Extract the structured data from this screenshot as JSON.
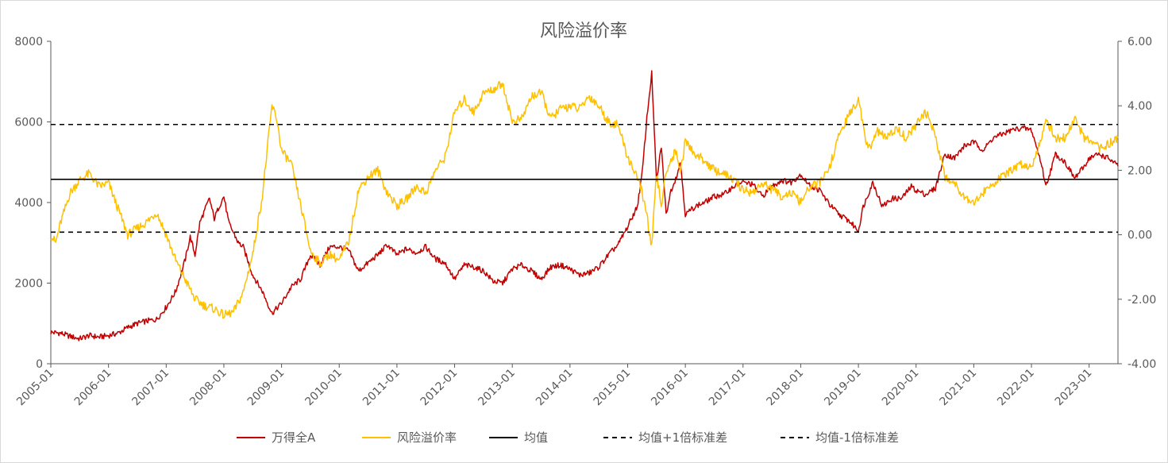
{
  "chart_data": {
    "type": "line",
    "title": "风险溢价率",
    "x_ticks": [
      "2005-01",
      "2006-01",
      "2007-01",
      "2008-01",
      "2009-01",
      "2010-01",
      "2011-01",
      "2012-01",
      "2013-01",
      "2014-01",
      "2015-01",
      "2016-01",
      "2017-01",
      "2018-01",
      "2019-01",
      "2020-01",
      "2021-01",
      "2022-01",
      "2023-01"
    ],
    "x_range": [
      "2005-01",
      "2023-07"
    ],
    "y_left": {
      "min": 0,
      "max": 8000,
      "ticks": [
        "0",
        "2000",
        "4000",
        "6000",
        "8000"
      ]
    },
    "y_right": {
      "min": -4,
      "max": 6,
      "ticks": [
        "-4.00",
        "-2.00",
        "0.00",
        "2.00",
        "4.00",
        "6.00"
      ]
    },
    "grid": false,
    "legend_position": "bottom",
    "series": [
      {
        "name": "万得全A",
        "axis": "left",
        "color": "#C00000",
        "points": [
          [
            "2005-01",
            780
          ],
          [
            "2005-03",
            760
          ],
          [
            "2005-05",
            680
          ],
          [
            "2005-07",
            620
          ],
          [
            "2005-09",
            700
          ],
          [
            "2005-11",
            660
          ],
          [
            "2006-01",
            700
          ],
          [
            "2006-03",
            760
          ],
          [
            "2006-05",
            900
          ],
          [
            "2006-07",
            1000
          ],
          [
            "2006-09",
            1060
          ],
          [
            "2006-11",
            1100
          ],
          [
            "2007-01",
            1400
          ],
          [
            "2007-03",
            1800
          ],
          [
            "2007-05",
            2600
          ],
          [
            "2007-06",
            3150
          ],
          [
            "2007-07",
            2700
          ],
          [
            "2007-08",
            3500
          ],
          [
            "2007-10",
            4100
          ],
          [
            "2007-11",
            3600
          ],
          [
            "2007-12",
            3900
          ],
          [
            "2008-01",
            4150
          ],
          [
            "2008-02",
            3500
          ],
          [
            "2008-04",
            3000
          ],
          [
            "2008-05",
            2900
          ],
          [
            "2008-07",
            2200
          ],
          [
            "2008-09",
            1800
          ],
          [
            "2008-11",
            1250
          ],
          [
            "2009-01",
            1500
          ],
          [
            "2009-03",
            1900
          ],
          [
            "2009-05",
            2100
          ],
          [
            "2009-07",
            2700
          ],
          [
            "2009-09",
            2450
          ],
          [
            "2009-11",
            2900
          ],
          [
            "2010-01",
            2900
          ],
          [
            "2010-03",
            2800
          ],
          [
            "2010-05",
            2300
          ],
          [
            "2010-07",
            2500
          ],
          [
            "2010-09",
            2700
          ],
          [
            "2010-11",
            2950
          ],
          [
            "2011-01",
            2700
          ],
          [
            "2011-03",
            2850
          ],
          [
            "2011-05",
            2750
          ],
          [
            "2011-07",
            2900
          ],
          [
            "2011-09",
            2600
          ],
          [
            "2011-11",
            2500
          ],
          [
            "2012-01",
            2100
          ],
          [
            "2012-03",
            2450
          ],
          [
            "2012-05",
            2400
          ],
          [
            "2012-07",
            2300
          ],
          [
            "2012-09",
            2050
          ],
          [
            "2012-11",
            2000
          ],
          [
            "2013-01",
            2350
          ],
          [
            "2013-03",
            2450
          ],
          [
            "2013-05",
            2300
          ],
          [
            "2013-07",
            2100
          ],
          [
            "2013-09",
            2400
          ],
          [
            "2013-11",
            2450
          ],
          [
            "2014-01",
            2350
          ],
          [
            "2014-03",
            2200
          ],
          [
            "2014-05",
            2250
          ],
          [
            "2014-07",
            2400
          ],
          [
            "2014-09",
            2700
          ],
          [
            "2014-11",
            2950
          ],
          [
            "2015-01",
            3400
          ],
          [
            "2015-03",
            3900
          ],
          [
            "2015-04",
            4700
          ],
          [
            "2015-05",
            6100
          ],
          [
            "2015-06",
            7200
          ],
          [
            "2015-07",
            4500
          ],
          [
            "2015-08",
            5400
          ],
          [
            "2015-09",
            3700
          ],
          [
            "2015-10",
            4300
          ],
          [
            "2015-11",
            4600
          ],
          [
            "2015-12",
            5000
          ],
          [
            "2016-01",
            3700
          ],
          [
            "2016-03",
            3900
          ],
          [
            "2016-05",
            4000
          ],
          [
            "2016-07",
            4150
          ],
          [
            "2016-09",
            4200
          ],
          [
            "2016-11",
            4400
          ],
          [
            "2017-01",
            4500
          ],
          [
            "2017-03",
            4450
          ],
          [
            "2017-05",
            4150
          ],
          [
            "2017-07",
            4400
          ],
          [
            "2017-09",
            4550
          ],
          [
            "2017-11",
            4500
          ],
          [
            "2018-01",
            4700
          ],
          [
            "2018-03",
            4400
          ],
          [
            "2018-05",
            4300
          ],
          [
            "2018-07",
            3950
          ],
          [
            "2018-09",
            3700
          ],
          [
            "2018-11",
            3550
          ],
          [
            "2019-01",
            3300
          ],
          [
            "2019-02",
            3900
          ],
          [
            "2019-04",
            4500
          ],
          [
            "2019-06",
            3900
          ],
          [
            "2019-08",
            4100
          ],
          [
            "2019-10",
            4100
          ],
          [
            "2019-12",
            4400
          ],
          [
            "2020-01",
            4300
          ],
          [
            "2020-03",
            4200
          ],
          [
            "2020-05",
            4350
          ],
          [
            "2020-07",
            5200
          ],
          [
            "2020-09",
            5100
          ],
          [
            "2020-11",
            5400
          ],
          [
            "2021-01",
            5500
          ],
          [
            "2021-03",
            5300
          ],
          [
            "2021-05",
            5600
          ],
          [
            "2021-07",
            5700
          ],
          [
            "2021-09",
            5800
          ],
          [
            "2021-11",
            5850
          ],
          [
            "2022-01",
            5800
          ],
          [
            "2022-03",
            5000
          ],
          [
            "2022-04",
            4400
          ],
          [
            "2022-06",
            5200
          ],
          [
            "2022-08",
            5000
          ],
          [
            "2022-10",
            4600
          ],
          [
            "2022-12",
            4900
          ],
          [
            "2023-01",
            5100
          ],
          [
            "2023-03",
            5200
          ],
          [
            "2023-05",
            5100
          ],
          [
            "2023-07",
            4900
          ]
        ]
      },
      {
        "name": "风险溢价率",
        "axis": "right",
        "color": "#FFC000",
        "points": [
          [
            "2005-01",
            0.0
          ],
          [
            "2005-02",
            -0.25
          ],
          [
            "2005-03",
            0.35
          ],
          [
            "2005-05",
            1.3
          ],
          [
            "2005-07",
            1.7
          ],
          [
            "2005-09",
            1.9
          ],
          [
            "2005-11",
            1.5
          ],
          [
            "2006-01",
            1.6
          ],
          [
            "2006-03",
            0.8
          ],
          [
            "2006-05",
            0.0
          ],
          [
            "2006-07",
            0.2
          ],
          [
            "2006-09",
            0.4
          ],
          [
            "2006-11",
            0.7
          ],
          [
            "2007-01",
            0.0
          ],
          [
            "2007-03",
            -0.8
          ],
          [
            "2007-05",
            -1.4
          ],
          [
            "2007-07",
            -2.0
          ],
          [
            "2007-09",
            -2.2
          ],
          [
            "2007-11",
            -2.3
          ],
          [
            "2008-01",
            -2.5
          ],
          [
            "2008-03",
            -2.4
          ],
          [
            "2008-05",
            -1.8
          ],
          [
            "2008-07",
            -0.6
          ],
          [
            "2008-09",
            1.2
          ],
          [
            "2008-11",
            4.0
          ],
          [
            "2008-12",
            3.6
          ],
          [
            "2009-01",
            2.6
          ],
          [
            "2009-03",
            2.2
          ],
          [
            "2009-05",
            0.9
          ],
          [
            "2009-07",
            -0.5
          ],
          [
            "2009-09",
            -0.9
          ],
          [
            "2009-11",
            -0.6
          ],
          [
            "2010-01",
            -0.8
          ],
          [
            "2010-03",
            -0.2
          ],
          [
            "2010-05",
            1.4
          ],
          [
            "2010-07",
            1.8
          ],
          [
            "2010-09",
            2.0
          ],
          [
            "2010-11",
            1.3
          ],
          [
            "2011-01",
            0.9
          ],
          [
            "2011-03",
            1.1
          ],
          [
            "2011-05",
            1.5
          ],
          [
            "2011-07",
            1.3
          ],
          [
            "2011-09",
            2.0
          ],
          [
            "2011-11",
            2.4
          ],
          [
            "2012-01",
            3.8
          ],
          [
            "2012-03",
            4.2
          ],
          [
            "2012-05",
            3.8
          ],
          [
            "2012-07",
            4.4
          ],
          [
            "2012-09",
            4.5
          ],
          [
            "2012-11",
            4.7
          ],
          [
            "2013-01",
            3.5
          ],
          [
            "2013-03",
            3.6
          ],
          [
            "2013-05",
            4.3
          ],
          [
            "2013-07",
            4.4
          ],
          [
            "2013-09",
            3.6
          ],
          [
            "2013-11",
            3.9
          ],
          [
            "2014-01",
            4.0
          ],
          [
            "2014-03",
            3.9
          ],
          [
            "2014-05",
            4.3
          ],
          [
            "2014-07",
            4.0
          ],
          [
            "2014-09",
            3.5
          ],
          [
            "2014-11",
            3.4
          ],
          [
            "2015-01",
            2.4
          ],
          [
            "2015-03",
            1.8
          ],
          [
            "2015-04",
            1.3
          ],
          [
            "2015-05",
            0.6
          ],
          [
            "2015-06",
            -0.4
          ],
          [
            "2015-07",
            1.9
          ],
          [
            "2015-08",
            0.9
          ],
          [
            "2015-09",
            2.0
          ],
          [
            "2015-11",
            2.6
          ],
          [
            "2015-12",
            2.0
          ],
          [
            "2016-01",
            2.9
          ],
          [
            "2016-03",
            2.5
          ],
          [
            "2016-05",
            2.3
          ],
          [
            "2016-07",
            2.0
          ],
          [
            "2016-09",
            1.9
          ],
          [
            "2016-11",
            1.7
          ],
          [
            "2017-01",
            1.4
          ],
          [
            "2017-03",
            1.3
          ],
          [
            "2017-05",
            1.6
          ],
          [
            "2017-07",
            1.4
          ],
          [
            "2017-09",
            1.2
          ],
          [
            "2017-11",
            1.3
          ],
          [
            "2018-01",
            1.0
          ],
          [
            "2018-03",
            1.5
          ],
          [
            "2018-05",
            1.6
          ],
          [
            "2018-07",
            2.1
          ],
          [
            "2018-09",
            3.1
          ],
          [
            "2018-11",
            3.7
          ],
          [
            "2019-01",
            4.2
          ],
          [
            "2019-03",
            2.6
          ],
          [
            "2019-05",
            3.2
          ],
          [
            "2019-07",
            3.0
          ],
          [
            "2019-09",
            3.3
          ],
          [
            "2019-11",
            3.0
          ],
          [
            "2020-01",
            3.4
          ],
          [
            "2020-03",
            3.8
          ],
          [
            "2020-05",
            3.1
          ],
          [
            "2020-07",
            1.8
          ],
          [
            "2020-09",
            1.6
          ],
          [
            "2020-11",
            1.2
          ],
          [
            "2021-01",
            1.0
          ],
          [
            "2021-03",
            1.3
          ],
          [
            "2021-05",
            1.6
          ],
          [
            "2021-07",
            1.8
          ],
          [
            "2021-09",
            2.0
          ],
          [
            "2021-11",
            2.2
          ],
          [
            "2022-01",
            2.1
          ],
          [
            "2022-03",
            3.0
          ],
          [
            "2022-04",
            3.6
          ],
          [
            "2022-06",
            3.0
          ],
          [
            "2022-08",
            3.0
          ],
          [
            "2022-10",
            3.6
          ],
          [
            "2022-12",
            3.0
          ],
          [
            "2023-01",
            2.9
          ],
          [
            "2023-03",
            2.7
          ],
          [
            "2023-05",
            2.8
          ],
          [
            "2023-07",
            3.0
          ]
        ]
      },
      {
        "name": "均值",
        "axis": "right",
        "color": "#000000",
        "dash": "solid",
        "constant": 1.72
      },
      {
        "name": "均值+1倍标准差",
        "axis": "right",
        "color": "#000000",
        "dash": "dashed",
        "constant": 3.42
      },
      {
        "name": "均值-1倍标准差",
        "axis": "right",
        "color": "#000000",
        "dash": "dashed",
        "constant": 0.08
      }
    ]
  }
}
